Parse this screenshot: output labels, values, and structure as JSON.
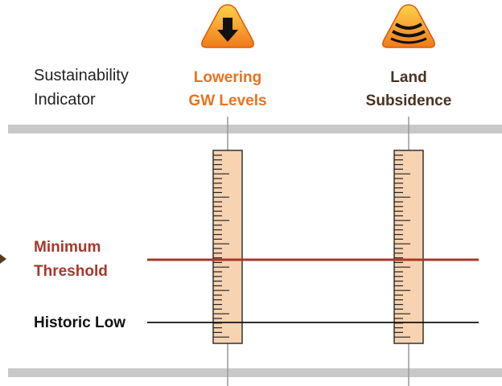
{
  "indicator_label": [
    "Sustainability",
    "Indicator"
  ],
  "columns": [
    {
      "label": [
        "Lowering",
        "GW Levels"
      ]
    },
    {
      "label": [
        "Land",
        "Subsidence"
      ]
    }
  ],
  "levels": [
    {
      "label": [
        "Minimum",
        "Threshold"
      ]
    },
    {
      "label": [
        "Historic Low"
      ]
    }
  ]
}
